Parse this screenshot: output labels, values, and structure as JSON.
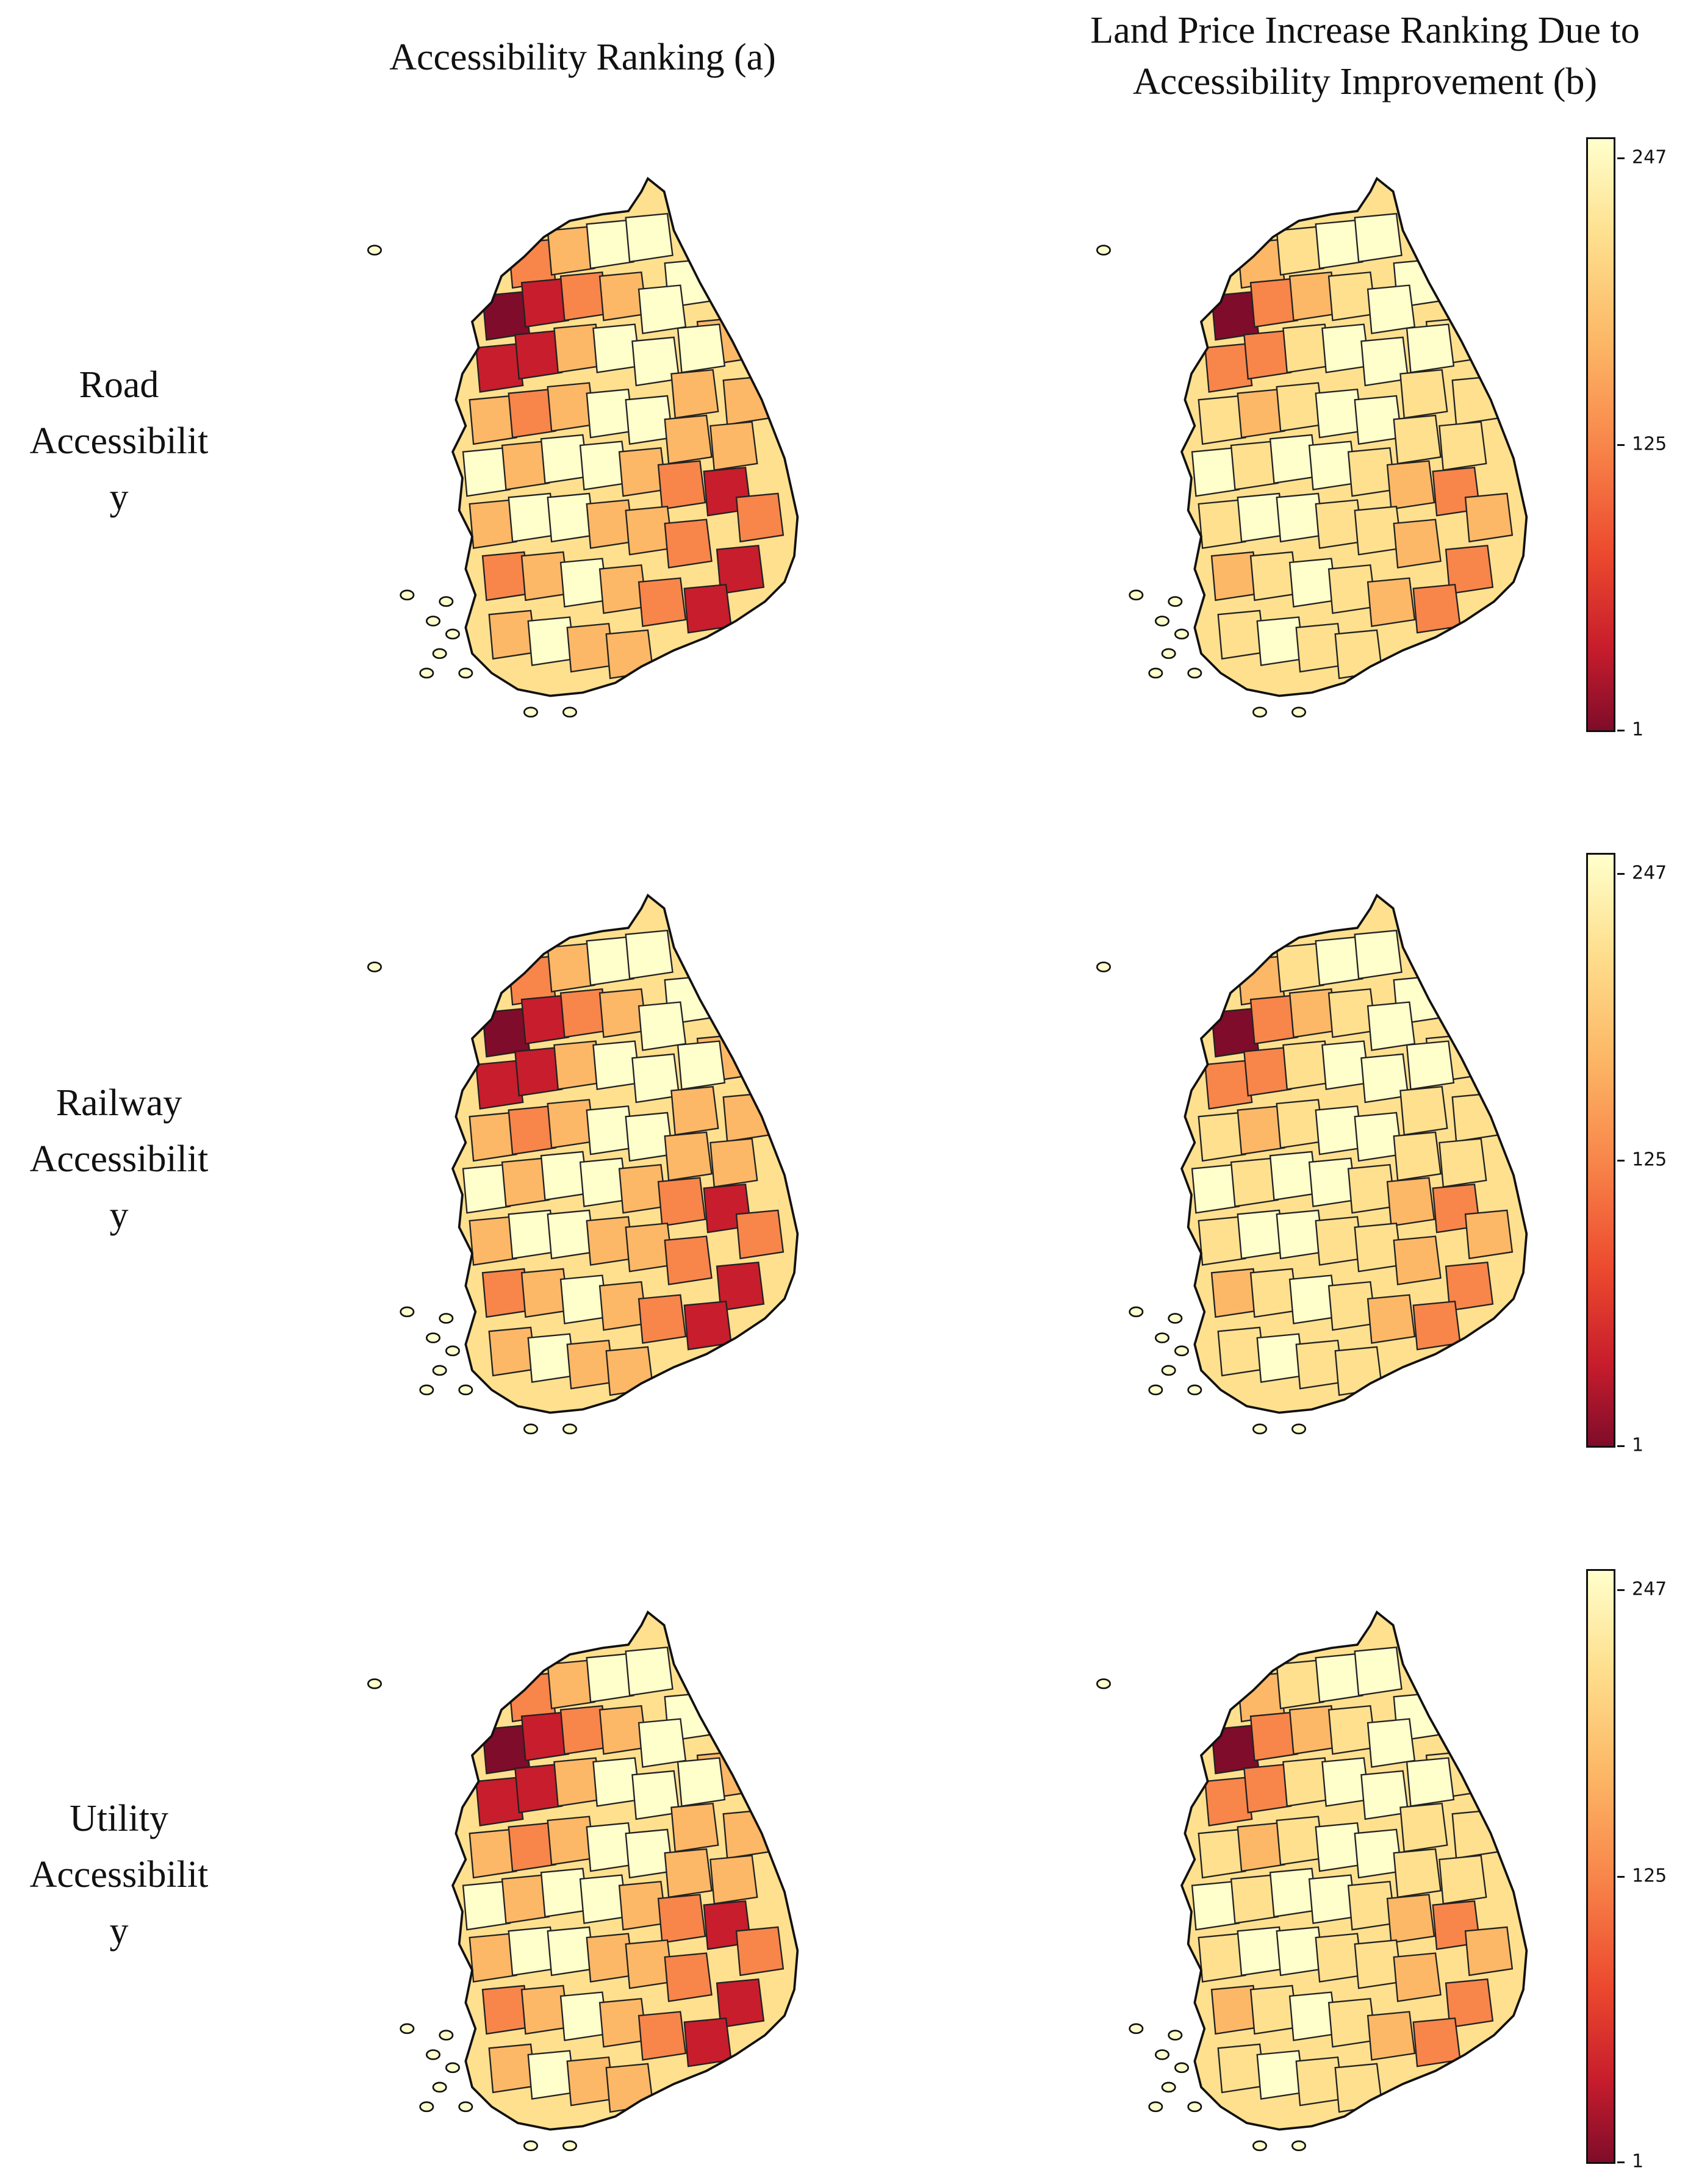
{
  "titles": {
    "col_a": "Accessibility Ranking (a)",
    "col_b_line1": "Land Price Increase Ranking Due to",
    "col_b_line2": "Accessibility Improvement (b)"
  },
  "rows": [
    {
      "name": "Road",
      "line2": "Accessibilit",
      "line3": "y"
    },
    {
      "name": "Railway",
      "line2": "Accessibilit",
      "line3": "y"
    },
    {
      "name": "Utility",
      "line2": "Accessibilit",
      "line3": "y"
    }
  ],
  "colorbar": {
    "max": "247",
    "mid": "125",
    "min": "1"
  },
  "colors": {
    "high": "#ffffcc",
    "upper": "#fee08f",
    "midhigh": "#fcb866",
    "mid": "#f8854a",
    "midlow": "#ec4a2e",
    "low": "#c81d2c",
    "lowest": "#7f0c2a"
  }
}
